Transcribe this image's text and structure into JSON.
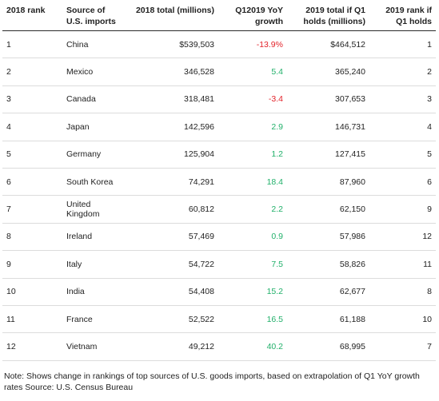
{
  "colors": {
    "negative": "#e3232a",
    "positive": "#21b06a",
    "rule": "#2a2a2a",
    "gridline": "#dcdcdc"
  },
  "chart_data": {
    "type": "table",
    "columns": [
      "2018 rank",
      "Source of U.S. imports",
      "2018 total (millions)",
      "Q12019 YoY growth",
      "2019 total if Q1 holds (millions)",
      "2019 rank if Q1 holds"
    ],
    "rows": [
      {
        "rank": "1",
        "country": "China",
        "total2018": "$539,503",
        "growth": "-13.9%",
        "growth_value": -13.9,
        "total2019": "$464,512",
        "rank2019": "1"
      },
      {
        "rank": "2",
        "country": "Mexico",
        "total2018": "346,528",
        "growth": "5.4",
        "growth_value": 5.4,
        "total2019": "365,240",
        "rank2019": "2"
      },
      {
        "rank": "3",
        "country": "Canada",
        "total2018": "318,481",
        "growth": "-3.4",
        "growth_value": -3.4,
        "total2019": "307,653",
        "rank2019": "3"
      },
      {
        "rank": "4",
        "country": "Japan",
        "total2018": "142,596",
        "growth": "2.9",
        "growth_value": 2.9,
        "total2019": "146,731",
        "rank2019": "4"
      },
      {
        "rank": "5",
        "country": "Germany",
        "total2018": "125,904",
        "growth": "1.2",
        "growth_value": 1.2,
        "total2019": "127,415",
        "rank2019": "5"
      },
      {
        "rank": "6",
        "country": "South Korea",
        "total2018": "74,291",
        "growth": "18.4",
        "growth_value": 18.4,
        "total2019": "87,960",
        "rank2019": "6"
      },
      {
        "rank": "7",
        "country": "United Kingdom",
        "total2018": "60,812",
        "growth": "2.2",
        "growth_value": 2.2,
        "total2019": "62,150",
        "rank2019": "9"
      },
      {
        "rank": "8",
        "country": "Ireland",
        "total2018": "57,469",
        "growth": "0.9",
        "growth_value": 0.9,
        "total2019": "57,986",
        "rank2019": "12"
      },
      {
        "rank": "9",
        "country": "Italy",
        "total2018": "54,722",
        "growth": "7.5",
        "growth_value": 7.5,
        "total2019": "58,826",
        "rank2019": "11"
      },
      {
        "rank": "10",
        "country": "India",
        "total2018": "54,408",
        "growth": "15.2",
        "growth_value": 15.2,
        "total2019": "62,677",
        "rank2019": "8"
      },
      {
        "rank": "11",
        "country": "France",
        "total2018": "52,522",
        "growth": "16.5",
        "growth_value": 16.5,
        "total2019": "61,188",
        "rank2019": "10"
      },
      {
        "rank": "12",
        "country": "Vietnam",
        "total2018": "49,212",
        "growth": "40.2",
        "growth_value": 40.2,
        "total2019": "68,995",
        "rank2019": "7"
      }
    ],
    "note": "Note: Shows change in rankings of top sources of U.S. goods imports, based on extrapolation of Q1 YoY growth rates Source: U.S. Census Bureau"
  }
}
